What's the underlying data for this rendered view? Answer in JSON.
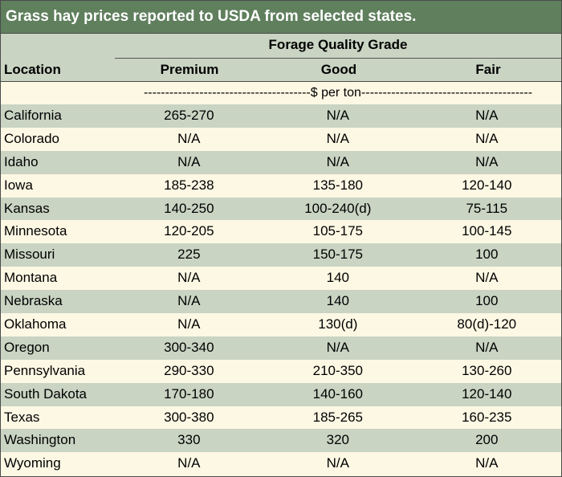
{
  "title": "Grass hay prices reported to USDA from selected states.",
  "header": {
    "group_label": "Forage Quality Grade",
    "location": "Location",
    "premium": "Premium",
    "good": "Good",
    "fair": "Fair"
  },
  "units": "---------------------------------------$ per ton----------------------------------------",
  "colors": {
    "title_bg": "#5f7f5d",
    "band": "#c9d4c3",
    "cream": "#fdf8e4"
  },
  "rows": [
    {
      "location": "California",
      "premium": "265-270",
      "good": "N/A",
      "fair": "N/A"
    },
    {
      "location": "Colorado",
      "premium": "N/A",
      "good": "N/A",
      "fair": "N/A"
    },
    {
      "location": "Idaho",
      "premium": "N/A",
      "good": "N/A",
      "fair": "N/A"
    },
    {
      "location": "Iowa",
      "premium": "185-238",
      "good": "135-180",
      "fair": "120-140"
    },
    {
      "location": "Kansas",
      "premium": "140-250",
      "good": "100-240(d)",
      "fair": "75-115"
    },
    {
      "location": "Minnesota",
      "premium": "120-205",
      "good": "105-175",
      "fair": "100-145"
    },
    {
      "location": "Missouri",
      "premium": "225",
      "good": "150-175",
      "fair": "100"
    },
    {
      "location": "Montana",
      "premium": "N/A",
      "good": "140",
      "fair": "N/A"
    },
    {
      "location": "Nebraska",
      "premium": "N/A",
      "good": "140",
      "fair": "100"
    },
    {
      "location": "Oklahoma",
      "premium": "N/A",
      "good": "130(d)",
      "fair": "80(d)-120"
    },
    {
      "location": "Oregon",
      "premium": "300-340",
      "good": "N/A",
      "fair": "N/A"
    },
    {
      "location": "Pennsylvania",
      "premium": "290-330",
      "good": "210-350",
      "fair": "130-260"
    },
    {
      "location": "South Dakota",
      "premium": "170-180",
      "good": "140-160",
      "fair": "120-140"
    },
    {
      "location": "Texas",
      "premium": "300-380",
      "good": "185-265",
      "fair": "160-235"
    },
    {
      "location": "Washington",
      "premium": "330",
      "good": "320",
      "fair": "200"
    },
    {
      "location": "Wyoming",
      "premium": "N/A",
      "good": "N/A",
      "fair": "N/A"
    }
  ]
}
